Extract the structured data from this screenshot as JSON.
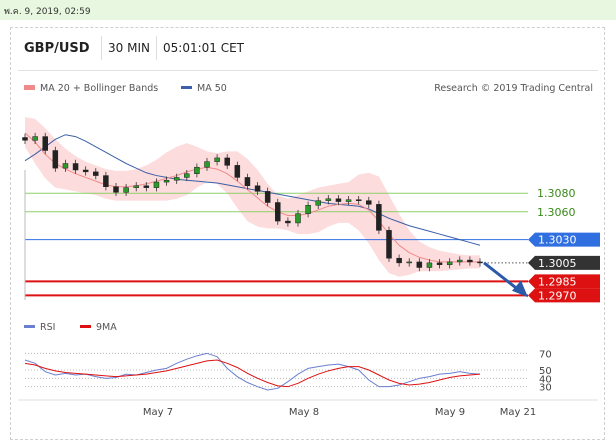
{
  "header": {
    "date_time": "พ.ค. 9, 2019, 02:59",
    "pair": "GBP/USD",
    "timeframe": "30 MIN",
    "time": "05:01:01 CET"
  },
  "legend": {
    "ma_bb": "MA 20 + Bollinger Bands",
    "ma50": "MA 50",
    "credit": "Research © 2019 Trading Central",
    "rsi": "RSI",
    "ma9": "9MA"
  },
  "colors": {
    "ma20": "#f08a8a",
    "band": "#fbd0d0",
    "ma50": "#3b5fa8",
    "resistance": "#8fcf6a",
    "pivot": "#2f6fe0",
    "support": "#dd1111",
    "price": "#333333",
    "rsi": "#6b7fd0",
    "arrow": "#2b5aa8"
  },
  "chart_data": {
    "type": "line",
    "x_ticks": [
      "May 7",
      "May 8",
      "May 9",
      "May 21"
    ],
    "levels": [
      {
        "label": "1.3080",
        "value": 1.308,
        "kind": "resistance"
      },
      {
        "label": "1.3060",
        "value": 1.306,
        "kind": "resistance"
      },
      {
        "label": "1.3030",
        "value": 1.303,
        "kind": "pivot"
      },
      {
        "label": "1.3005",
        "value": 1.3005,
        "kind": "last"
      },
      {
        "label": "1.2985",
        "value": 1.2985,
        "kind": "support"
      },
      {
        "label": "1.2970",
        "value": 1.297,
        "kind": "support"
      }
    ],
    "price_range": [
      1.2965,
      1.3175
    ],
    "close": [
      1.3137,
      1.3141,
      1.3126,
      1.3107,
      1.3112,
      1.3105,
      1.3103,
      1.3099,
      1.3087,
      1.3081,
      1.3086,
      1.3088,
      1.3086,
      1.3092,
      1.3094,
      1.3097,
      1.3101,
      1.3108,
      1.3114,
      1.3118,
      1.311,
      1.3097,
      1.3088,
      1.3082,
      1.307,
      1.305,
      1.3048,
      1.3058,
      1.3067,
      1.3072,
      1.3074,
      1.3071,
      1.3073,
      1.3072,
      1.3068,
      1.304,
      1.301,
      1.3005,
      1.3006,
      1.3,
      1.3005,
      1.3003,
      1.3006,
      1.3008,
      1.3006,
      1.3005
    ],
    "ma20": [
      1.3145,
      1.3135,
      1.3122,
      1.3112,
      1.3106,
      1.3101,
      1.3097,
      1.3093,
      1.3089,
      1.3087,
      1.3087,
      1.3088,
      1.309,
      1.3093,
      1.3096,
      1.3099,
      1.3103,
      1.3106,
      1.3108,
      1.3106,
      1.3101,
      1.3093,
      1.3084,
      1.3075,
      1.3066,
      1.306,
      1.3056,
      1.3056,
      1.3058,
      1.3062,
      1.3066,
      1.3068,
      1.3069,
      1.3068,
      1.3062,
      1.305,
      1.3036,
      1.3024,
      1.3016,
      1.3011,
      1.3008,
      1.3006,
      1.3006,
      1.3006,
      1.3006,
      1.3006
    ],
    "bb_upper": [
      1.3162,
      1.316,
      1.315,
      1.3138,
      1.3128,
      1.312,
      1.3114,
      1.311,
      1.3106,
      1.3104,
      1.3104,
      1.3106,
      1.311,
      1.3116,
      1.3124,
      1.313,
      1.3134,
      1.313,
      1.3125,
      1.3123,
      1.3125,
      1.3125,
      1.3117,
      1.3105,
      1.309,
      1.3078,
      1.3074,
      1.3078,
      1.3082,
      1.3086,
      1.3088,
      1.309,
      1.3092,
      1.31,
      1.3102,
      1.3098,
      1.3078,
      1.3058,
      1.304,
      1.3028,
      1.3022,
      1.3018,
      1.3016,
      1.3014,
      1.3013,
      1.3013
    ],
    "bb_lower": [
      1.313,
      1.3112,
      1.3096,
      1.3086,
      1.3084,
      1.3082,
      1.308,
      1.3078,
      1.3074,
      1.3072,
      1.3072,
      1.3072,
      1.3072,
      1.3072,
      1.3072,
      1.3074,
      1.3078,
      1.3086,
      1.3092,
      1.309,
      1.308,
      1.3064,
      1.305,
      1.3044,
      1.3042,
      1.3042,
      1.304,
      1.3036,
      1.3036,
      1.3038,
      1.3044,
      1.3048,
      1.3048,
      1.304,
      1.3026,
      1.3008,
      1.2994,
      1.299,
      1.2992,
      1.2996,
      1.2996,
      1.2996,
      1.2997,
      1.2998,
      1.2999,
      1.2999
    ],
    "ma50": [
      1.3115,
      1.3122,
      1.313,
      1.3138,
      1.3143,
      1.3141,
      1.3136,
      1.313,
      1.3124,
      1.3118,
      1.3112,
      1.3107,
      1.3102,
      1.3099,
      1.3097,
      1.3095,
      1.3094,
      1.3093,
      1.3092,
      1.3091,
      1.3089,
      1.3087,
      1.3085,
      1.3083,
      1.3081,
      1.3079,
      1.3077,
      1.3075,
      1.3073,
      1.3071,
      1.3069,
      1.3068,
      1.3067,
      1.3066,
      1.3063,
      1.3058,
      1.3053,
      1.3049,
      1.3045,
      1.3042,
      1.3039,
      1.3036,
      1.3033,
      1.303,
      1.3027,
      1.3024
    ],
    "rsi_ticks": [
      70,
      50,
      40,
      30
    ],
    "rsi_range": [
      20,
      80
    ],
    "rsi": [
      62,
      58,
      48,
      44,
      46,
      44,
      45,
      42,
      40,
      41,
      45,
      44,
      47,
      50,
      52,
      58,
      63,
      67,
      70,
      66,
      52,
      42,
      35,
      30,
      26,
      28,
      36,
      45,
      52,
      54,
      56,
      57,
      54,
      50,
      38,
      30,
      30,
      32,
      36,
      40,
      42,
      45,
      46,
      48,
      46,
      45
    ],
    "rsi_ma9": [
      58,
      56,
      52,
      49,
      47,
      46,
      45,
      44,
      43,
      42,
      43,
      44,
      45,
      47,
      49,
      52,
      55,
      58,
      61,
      62,
      58,
      53,
      46,
      40,
      35,
      31,
      30,
      34,
      40,
      45,
      49,
      52,
      54,
      54,
      50,
      44,
      38,
      34,
      32,
      33,
      35,
      38,
      41,
      43,
      44,
      45
    ]
  }
}
